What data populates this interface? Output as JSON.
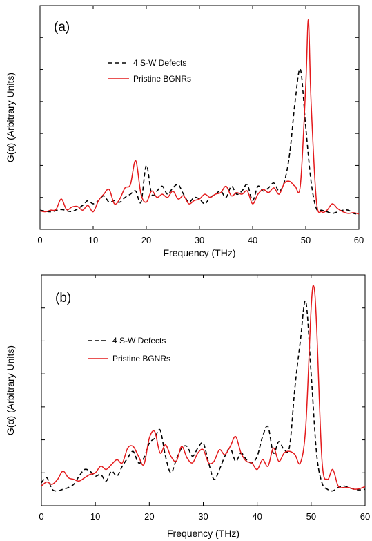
{
  "chart_data": [
    {
      "type": "line",
      "panel_label": "(a)",
      "xlabel": "Frequency (THz)",
      "ylabel": "G(α) (Arbitrary Units)",
      "xlim": [
        0,
        60
      ],
      "ylim": [
        0,
        7
      ],
      "xticks": [
        0,
        10,
        20,
        30,
        40,
        50,
        60
      ],
      "yticks": [
        1,
        2,
        3,
        4,
        5,
        6
      ],
      "grid": false,
      "legend_position": "upper-left",
      "series": [
        {
          "name": "4 S-W Defects",
          "color": "#000000",
          "dash": "dashed",
          "x": [
            0,
            2,
            4,
            6,
            8,
            9,
            10,
            11,
            12,
            13,
            14,
            15,
            16,
            17,
            18,
            19,
            20,
            21,
            22,
            23,
            24,
            25,
            26,
            27,
            28,
            29,
            30,
            31,
            32,
            33,
            34,
            35,
            36,
            37,
            38,
            39,
            40,
            41,
            42,
            43,
            44,
            45,
            46,
            47,
            48,
            49,
            50,
            51,
            52,
            53,
            54,
            55,
            56,
            57,
            58,
            59,
            60
          ],
          "values": [
            0.6,
            0.55,
            0.62,
            0.56,
            0.75,
            0.9,
            0.8,
            0.9,
            1.05,
            0.85,
            0.9,
            0.85,
            1.0,
            1.1,
            1.2,
            0.85,
            2.0,
            1.1,
            1.2,
            1.35,
            1.1,
            1.3,
            1.4,
            1.1,
            0.85,
            1.0,
            0.95,
            0.8,
            1.0,
            1.1,
            1.2,
            1.0,
            1.35,
            1.1,
            1.2,
            1.4,
            0.9,
            1.35,
            1.2,
            1.3,
            1.45,
            1.2,
            1.5,
            2.4,
            4.0,
            5.0,
            3.2,
            1.5,
            0.65,
            0.6,
            0.55,
            0.5,
            0.55,
            0.6,
            0.6,
            0.5,
            0.48
          ]
        },
        {
          "name": "Pristine BGNRs",
          "color": "#e41a1c",
          "dash": "solid",
          "x": [
            0,
            1,
            2,
            3,
            4,
            5,
            6,
            7,
            8,
            9,
            10,
            11,
            12,
            13,
            14,
            15,
            16,
            17,
            18,
            19,
            20,
            21,
            22,
            23,
            24,
            25,
            26,
            27,
            28,
            29,
            30,
            31,
            32,
            33,
            34,
            35,
            36,
            37,
            38,
            39,
            40,
            41,
            42,
            43,
            44,
            45,
            46,
            47,
            48,
            49,
            50,
            50.5,
            51,
            52,
            53,
            54,
            55,
            56,
            57,
            58,
            59,
            60
          ],
          "values": [
            0.58,
            0.55,
            0.6,
            0.62,
            0.95,
            0.62,
            0.7,
            0.72,
            0.6,
            0.75,
            0.55,
            0.9,
            1.1,
            1.25,
            0.8,
            0.95,
            1.3,
            1.4,
            2.15,
            1.1,
            0.85,
            1.2,
            1.0,
            1.1,
            1.0,
            1.2,
            0.95,
            1.05,
            0.8,
            0.9,
            0.95,
            1.1,
            1.0,
            1.1,
            1.15,
            1.35,
            1.05,
            1.15,
            1.1,
            1.2,
            0.8,
            1.1,
            1.25,
            1.15,
            1.3,
            1.1,
            1.45,
            1.5,
            1.35,
            1.4,
            4.5,
            6.55,
            4.0,
            0.9,
            0.55,
            0.6,
            0.8,
            0.65,
            0.55,
            0.5,
            0.52,
            0.48
          ]
        }
      ]
    },
    {
      "type": "line",
      "panel_label": "(b)",
      "xlabel": "Frequency (THz)",
      "ylabel": "G(α) (Arbitrary Units)",
      "xlim": [
        0,
        60
      ],
      "ylim": [
        0,
        7
      ],
      "xticks": [
        0,
        10,
        20,
        30,
        40,
        50,
        60
      ],
      "yticks": [
        1,
        2,
        3,
        4,
        5,
        6
      ],
      "grid": false,
      "legend_position": "upper-left",
      "series": [
        {
          "name": "4 S-W Defects",
          "color": "#000000",
          "dash": "dashed",
          "x": [
            0,
            1,
            2,
            3,
            4,
            5,
            6,
            7,
            8,
            9,
            10,
            11,
            12,
            13,
            14,
            15,
            16,
            17,
            18,
            19,
            20,
            21,
            22,
            23,
            24,
            25,
            26,
            27,
            28,
            29,
            30,
            31,
            32,
            33,
            34,
            35,
            36,
            37,
            38,
            39,
            40,
            41,
            42,
            43,
            44,
            45,
            46,
            47,
            48,
            49,
            50,
            51,
            52,
            53,
            54,
            55,
            56,
            57,
            58,
            59,
            60
          ],
          "values": [
            0.7,
            0.85,
            0.5,
            0.45,
            0.5,
            0.55,
            0.65,
            0.9,
            1.1,
            1.05,
            0.9,
            0.95,
            0.75,
            1.05,
            0.9,
            1.2,
            1.45,
            1.65,
            1.3,
            1.45,
            1.9,
            2.05,
            2.3,
            1.5,
            1.0,
            1.4,
            1.75,
            1.8,
            1.5,
            1.75,
            1.9,
            1.3,
            0.8,
            1.1,
            1.5,
            1.75,
            1.35,
            1.6,
            1.4,
            1.3,
            1.5,
            2.1,
            2.4,
            1.6,
            1.95,
            1.7,
            1.8,
            3.6,
            5.0,
            6.2,
            4.0,
            1.6,
            0.7,
            0.5,
            0.45,
            0.55,
            0.6,
            0.55,
            0.5,
            0.48,
            0.5
          ]
        },
        {
          "name": "Pristine BGNRs",
          "color": "#e41a1c",
          "dash": "solid",
          "x": [
            0,
            1,
            2,
            3,
            4,
            5,
            6,
            7,
            8,
            9,
            10,
            11,
            12,
            13,
            14,
            15,
            16,
            17,
            18,
            19,
            20,
            21,
            22,
            23,
            24,
            25,
            26,
            27,
            28,
            29,
            30,
            31,
            32,
            33,
            34,
            35,
            36,
            37,
            38,
            39,
            40,
            41,
            42,
            43,
            44,
            45,
            46,
            47,
            48,
            49,
            50,
            50.5,
            51,
            52,
            53,
            54,
            55,
            56,
            57,
            58,
            59,
            60
          ],
          "values": [
            0.6,
            0.72,
            0.65,
            0.8,
            1.05,
            0.85,
            0.8,
            0.75,
            0.85,
            0.95,
            1.0,
            1.2,
            1.1,
            1.25,
            1.4,
            1.3,
            1.75,
            1.8,
            1.5,
            1.25,
            2.05,
            2.25,
            1.6,
            1.85,
            1.5,
            1.35,
            1.8,
            1.45,
            1.3,
            1.6,
            1.7,
            1.3,
            1.35,
            1.7,
            1.55,
            1.8,
            2.1,
            1.6,
            1.35,
            1.3,
            1.1,
            1.4,
            1.2,
            1.75,
            1.35,
            1.6,
            1.65,
            1.55,
            1.3,
            2.4,
            6.0,
            6.65,
            5.5,
            1.4,
            0.8,
            1.1,
            0.6,
            0.55,
            0.55,
            0.5,
            0.52,
            0.58
          ]
        }
      ]
    }
  ]
}
